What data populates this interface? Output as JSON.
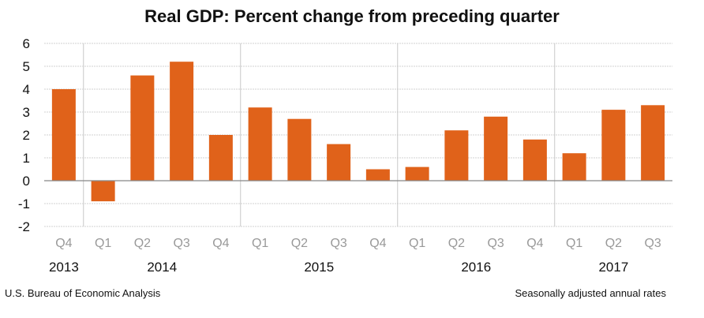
{
  "chart_data": {
    "type": "bar",
    "title": "Real GDP:  Percent change from preceding quarter",
    "categories": [
      "Q4",
      "Q1",
      "Q2",
      "Q3",
      "Q4",
      "Q1",
      "Q2",
      "Q3",
      "Q4",
      "Q1",
      "Q2",
      "Q3",
      "Q4",
      "Q1",
      "Q2",
      "Q3"
    ],
    "years": [
      {
        "label": "2013",
        "start": 0,
        "end": 0
      },
      {
        "label": "2014",
        "start": 1,
        "end": 4
      },
      {
        "label": "2015",
        "start": 5,
        "end": 8
      },
      {
        "label": "2016",
        "start": 9,
        "end": 12
      },
      {
        "label": "2017",
        "start": 13,
        "end": 15
      }
    ],
    "values": [
      4.0,
      -0.9,
      4.6,
      5.2,
      2.0,
      3.2,
      2.7,
      1.6,
      0.5,
      0.6,
      2.2,
      2.8,
      1.8,
      1.2,
      3.1,
      3.3
    ],
    "ylim": [
      -2,
      6
    ],
    "yticks": [
      6,
      5,
      4,
      3,
      2,
      1,
      0,
      -1,
      -2
    ],
    "grid": true,
    "bar_color": "#E0621A",
    "xlabel": "",
    "ylabel": ""
  },
  "footer": {
    "source": "U.S. Bureau of Economic Analysis",
    "note": "Seasonally adjusted annual rates"
  }
}
